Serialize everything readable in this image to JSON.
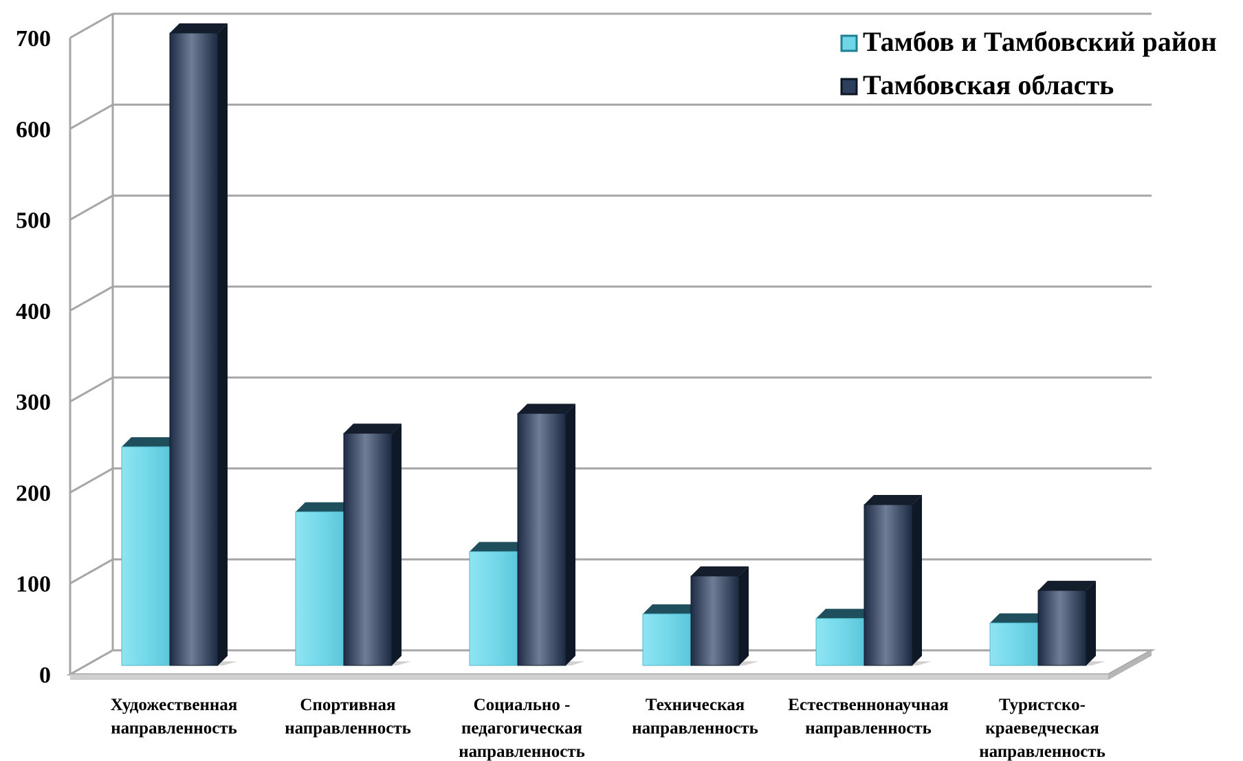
{
  "chart_data": {
    "type": "bar",
    "categories": [
      [
        "Художественная",
        "направленность"
      ],
      [
        "Спортивная",
        "направленность"
      ],
      [
        "Социально -",
        "педагогическая",
        "направленность"
      ],
      [
        "Техническая",
        "направленность"
      ],
      [
        "Естественнонаучная",
        "направленность"
      ],
      [
        "Туристско-",
        "краеведческая",
        "направленность"
      ]
    ],
    "series": [
      {
        "name": "Тамбов и Тамбовский район",
        "color": "#6fd6e8",
        "values": [
          242,
          170,
          126,
          57,
          52,
          47
        ]
      },
      {
        "name": "Тамбовская область",
        "color": "#2c3f5c",
        "values": [
          700,
          257,
          279,
          99,
          178,
          83
        ]
      }
    ],
    "yticks": [
      "0",
      "100",
      "200",
      "300",
      "400",
      "500",
      "600",
      "700"
    ],
    "ylim": [
      0,
      700
    ],
    "grid": true,
    "legend_position": "top-right",
    "title": "",
    "xlabel": "",
    "ylabel": ""
  }
}
